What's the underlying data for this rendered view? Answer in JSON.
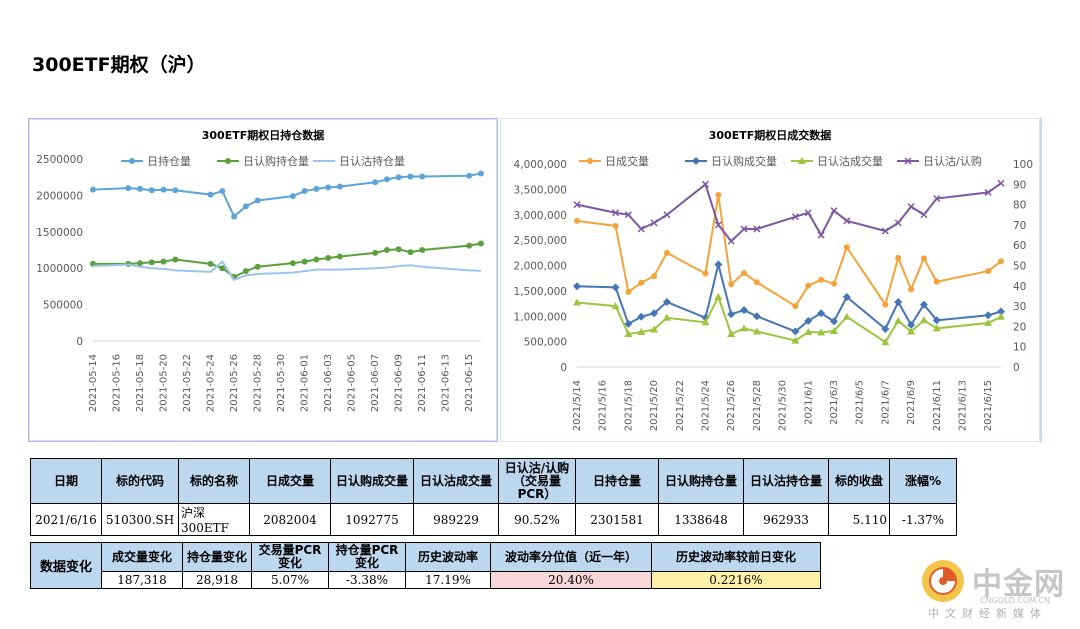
{
  "page_title": "300ETF期权（沪）",
  "chart_data": [
    {
      "type": "line",
      "title": "300ETF期权日持仓数据",
      "categories": [
        "2021-05-14",
        "2021-05-17",
        "2021-05-18",
        "2021-05-19",
        "2021-05-20",
        "2021-05-21",
        "2021-05-24",
        "2021-05-25",
        "2021-05-26",
        "2021-05-27",
        "2021-05-28",
        "2021-05-31",
        "2021-06-01",
        "2021-06-02",
        "2021-06-03",
        "2021-06-04",
        "2021-06-07",
        "2021-06-08",
        "2021-06-09",
        "2021-06-10",
        "2021-06-11",
        "2021-06-15",
        "2021-06-16"
      ],
      "tick_labels": [
        "2021-05-14",
        "2021-05-16",
        "2021-05-18",
        "2021-05-20",
        "2021-05-22",
        "2021-05-24",
        "2021-05-26",
        "2021-05-28",
        "2021-05-30",
        "2021-06-01",
        "2021-06-03",
        "2021-06-05",
        "2021-06-07",
        "2021-06-09",
        "2021-06-11",
        "2021-06-13",
        "2021-06-15"
      ],
      "x_days": [
        0,
        3,
        4,
        5,
        6,
        7,
        10,
        11,
        12,
        13,
        14,
        17,
        18,
        19,
        20,
        21,
        24,
        25,
        26,
        27,
        28,
        32,
        33
      ],
      "ylim": [
        0,
        2500000
      ],
      "yticks": [
        0,
        500000,
        1000000,
        1500000,
        2000000,
        2500000
      ],
      "ytick_labels": [
        "0",
        "500000",
        "1000000",
        "1500000",
        "2000000",
        "2500000"
      ],
      "legend_position": "top",
      "series": [
        {
          "name": "日持仓量",
          "color": "#5ba3d8",
          "marker": "circle",
          "values": [
            2080000,
            2100000,
            2090000,
            2070000,
            2080000,
            2070000,
            2010000,
            2060000,
            1710000,
            1850000,
            1930000,
            1990000,
            2060000,
            2090000,
            2110000,
            2120000,
            2180000,
            2220000,
            2250000,
            2260000,
            2260000,
            2270000,
            2301581
          ]
        },
        {
          "name": "日认购持仓量",
          "color": "#5aa03c",
          "marker": "circle",
          "values": [
            1060000,
            1060000,
            1070000,
            1080000,
            1090000,
            1120000,
            1060000,
            1000000,
            880000,
            960000,
            1020000,
            1070000,
            1090000,
            1120000,
            1140000,
            1160000,
            1210000,
            1250000,
            1260000,
            1220000,
            1250000,
            1310000,
            1338648
          ]
        },
        {
          "name": "日认沽持仓量",
          "color": "#9ec3ea",
          "marker": "none",
          "values": [
            1030000,
            1050000,
            1020000,
            1000000,
            990000,
            970000,
            950000,
            1090000,
            840000,
            900000,
            920000,
            940000,
            960000,
            980000,
            980000,
            980000,
            1000000,
            1010000,
            1030000,
            1040000,
            1020000,
            970000,
            962933
          ]
        }
      ]
    },
    {
      "type": "line",
      "title": "300ETF期权日成交数据",
      "categories": [
        "2021-05-14",
        "2021-05-17",
        "2021-05-18",
        "2021-05-19",
        "2021-05-20",
        "2021-05-21",
        "2021-05-24",
        "2021-05-25",
        "2021-05-26",
        "2021-05-27",
        "2021-05-28",
        "2021-05-31",
        "2021-06-01",
        "2021-06-02",
        "2021-06-03",
        "2021-06-04",
        "2021-06-07",
        "2021-06-08",
        "2021-06-09",
        "2021-06-10",
        "2021-06-11",
        "2021-06-15",
        "2021-06-16"
      ],
      "tick_labels": [
        "2021/5/14",
        "2021/5/16",
        "2021/5/18",
        "2021/5/20",
        "2021/5/22",
        "2021/5/24",
        "2021/5/26",
        "2021/5/28",
        "2021/5/30",
        "2021/6/1",
        "2021/6/3",
        "2021/6/5",
        "2021/6/7",
        "2021/6/9",
        "2021/6/11",
        "2021/6/13",
        "2021/6/15"
      ],
      "x_days": [
        0,
        3,
        4,
        5,
        6,
        7,
        10,
        11,
        12,
        13,
        14,
        17,
        18,
        19,
        20,
        21,
        24,
        25,
        26,
        27,
        28,
        32,
        33
      ],
      "ylim": [
        0,
        4000000
      ],
      "yticks": [
        0,
        500000,
        1000000,
        1500000,
        2000000,
        2500000,
        3000000,
        3500000,
        4000000
      ],
      "ytick_labels": [
        "0",
        "500,000",
        "1,000,000",
        "1,500,000",
        "2,000,000",
        "2,500,000",
        "3,000,000",
        "3,500,000",
        "4,000,000"
      ],
      "y2lim": [
        0,
        100
      ],
      "y2ticks": [
        0,
        10,
        20,
        30,
        40,
        50,
        60,
        70,
        80,
        90,
        100
      ],
      "y2tick_labels": [
        "0",
        "10",
        "20",
        "30",
        "40",
        "50",
        "60",
        "70",
        "80",
        "90",
        "100"
      ],
      "legend_position": "top",
      "series": [
        {
          "name": "日成交量",
          "color": "#f4a338",
          "marker": "circle",
          "axis": "left",
          "values": [
            2880000,
            2780000,
            1480000,
            1660000,
            1790000,
            2250000,
            1840000,
            3390000,
            1630000,
            1850000,
            1670000,
            1200000,
            1600000,
            1720000,
            1640000,
            2360000,
            1230000,
            2150000,
            1530000,
            2140000,
            1680000,
            1890000,
            2082004
          ]
        },
        {
          "name": "日认购成交量",
          "color": "#4575b4",
          "marker": "diamond",
          "axis": "left",
          "values": [
            1590000,
            1570000,
            850000,
            990000,
            1060000,
            1280000,
            970000,
            2020000,
            1040000,
            1120000,
            1000000,
            700000,
            910000,
            1060000,
            900000,
            1380000,
            750000,
            1280000,
            830000,
            1230000,
            920000,
            1020000,
            1092775
          ]
        },
        {
          "name": "日认沽成交量",
          "color": "#9bc53d",
          "marker": "triangle",
          "axis": "left",
          "values": [
            1270000,
            1200000,
            650000,
            690000,
            740000,
            970000,
            880000,
            1380000,
            650000,
            760000,
            700000,
            520000,
            690000,
            680000,
            710000,
            990000,
            490000,
            910000,
            700000,
            920000,
            760000,
            870000,
            989229
          ]
        },
        {
          "name": "日认沽/认购",
          "color": "#7e57a4",
          "marker": "cross",
          "axis": "right",
          "values": [
            80,
            76,
            75,
            68,
            71,
            75,
            90,
            70,
            62,
            68,
            68,
            74,
            76,
            65,
            77,
            72,
            67,
            71,
            79,
            75,
            83,
            86,
            90.52
          ]
        }
      ]
    }
  ],
  "table1": {
    "headers": [
      "日期",
      "标的代码",
      "标的名称",
      "日成交量",
      "日认购成交量",
      "日认沽成交量",
      "日认沽/认购（交易量PCR）",
      "日持仓量",
      "日认购持仓量",
      "日认沽持仓量",
      "标的收盘",
      "涨幅%"
    ],
    "values": [
      "2021/6/16",
      "510300.SH",
      "沪深300ETF",
      "2082004",
      "1092775",
      "989229",
      "90.52%",
      "2301581",
      "1338648",
      "962933",
      "5.110",
      "-1.37%"
    ]
  },
  "table2": {
    "side_label": "数据变化",
    "headers": [
      "成交量变化",
      "持仓量变化",
      "交易量PCR变化",
      "持仓量PCR变化",
      "历史波动率",
      "波动率分位值（近一年）",
      "历史波动率较前日变化"
    ],
    "values": [
      "187,318",
      "28,918",
      "5.07%",
      "-3.38%",
      "17.19%",
      "20.40%",
      "0.2216%"
    ]
  },
  "watermark": {
    "name": "中金网",
    "domain": "CNGOLD.COM.CN",
    "tagline": "中文财经新媒体"
  }
}
